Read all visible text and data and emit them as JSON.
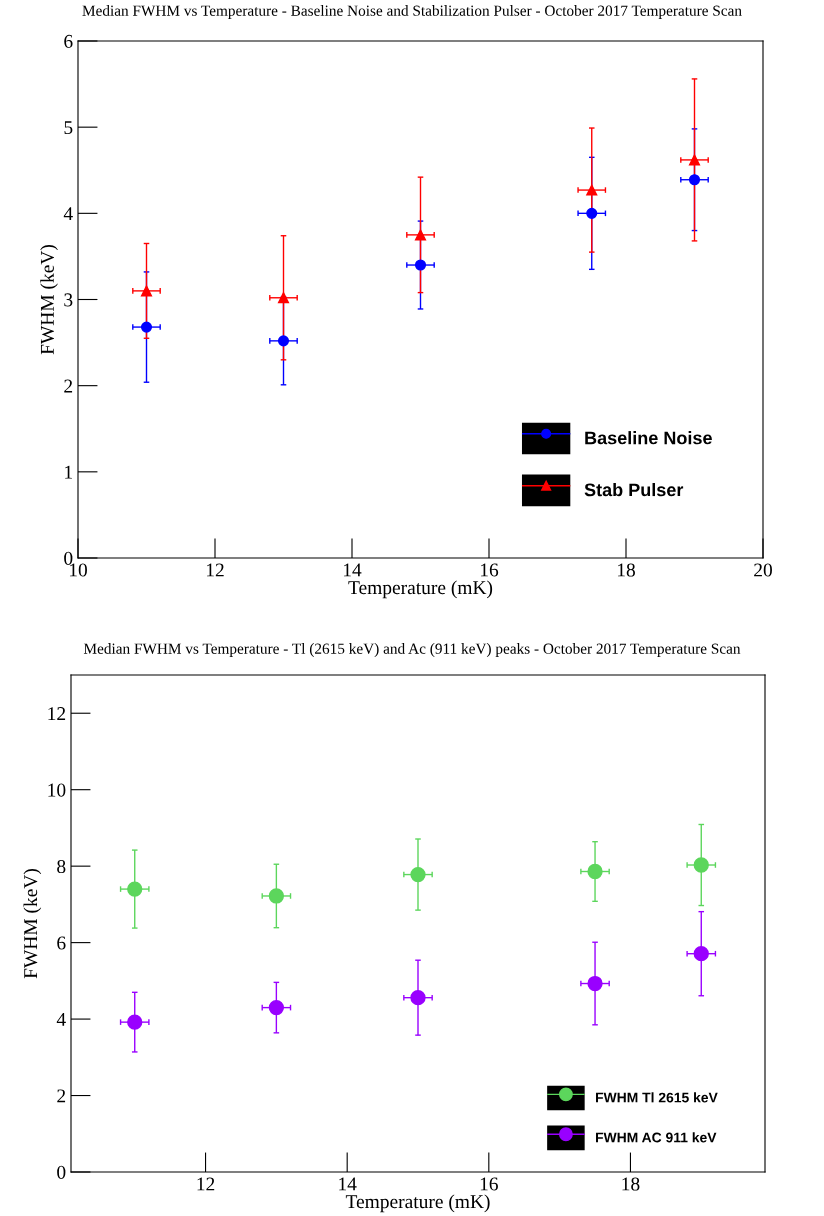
{
  "chart_data": [
    {
      "type": "scatter",
      "title": "Median FWHM vs Temperature - Baseline Noise and Stabilization Pulser - October 2017 Temperature Scan",
      "xlabel": "Temperature (mK)",
      "ylabel": "FWHM (keV)",
      "xlim": [
        10,
        20
      ],
      "xticks": [
        10,
        12,
        14,
        16,
        18,
        20
      ],
      "ylim": [
        0,
        6
      ],
      "yticks": [
        0,
        1,
        2,
        3,
        4,
        5,
        6
      ],
      "legend": "bottom right",
      "grid": false,
      "series": [
        {
          "name": "Baseline Noise",
          "color": "#0000ff",
          "marker": "circle",
          "x": [
            11,
            13,
            15,
            17.5,
            19
          ],
          "values": [
            2.68,
            2.52,
            3.4,
            4.0,
            4.39
          ],
          "errors": [
            0.64,
            0.51,
            0.51,
            0.65,
            0.59
          ],
          "xerrors": [
            0.2,
            0.2,
            0.2,
            0.2,
            0.2
          ]
        },
        {
          "name": "Stab Pulser",
          "color": "#ff0000",
          "marker": "triangle",
          "x": [
            11,
            13,
            15,
            17.5,
            19
          ],
          "values": [
            3.1,
            3.02,
            3.75,
            4.27,
            4.62
          ],
          "errors": [
            0.55,
            0.72,
            0.67,
            0.72,
            0.94
          ],
          "xerrors": [
            0.2,
            0.2,
            0.2,
            0.2,
            0.2
          ]
        }
      ]
    },
    {
      "type": "scatter",
      "title": "Median FWHM vs Temperature - Tl (2615 keV) and Ac (911 keV) peaks - October 2017 Temperature Scan",
      "xlabel": "Temperature (mK)",
      "ylabel": "FWHM (keV)",
      "xlim": [
        10.1,
        19.9
      ],
      "xticks": [
        12,
        14,
        16,
        18
      ],
      "ylim": [
        0,
        13
      ],
      "yticks": [
        0,
        2,
        4,
        6,
        8,
        10,
        12
      ],
      "legend": "bottom right",
      "grid": false,
      "series": [
        {
          "name": "FWHM Tl 2615 keV",
          "color": "#5cd65c",
          "marker": "circle",
          "x": [
            11,
            13,
            15,
            17.5,
            19
          ],
          "values": [
            7.4,
            7.22,
            7.78,
            7.86,
            8.03
          ],
          "errors": [
            1.02,
            0.83,
            0.93,
            0.78,
            1.06
          ],
          "xerrors": [
            0.2,
            0.2,
            0.2,
            0.2,
            0.2
          ]
        },
        {
          "name": "FWHM AC 911 keV",
          "color": "#9900ff",
          "marker": "circle",
          "x": [
            11,
            13,
            15,
            17.5,
            19
          ],
          "values": [
            3.92,
            4.3,
            4.56,
            4.93,
            5.71
          ],
          "errors": [
            0.78,
            0.66,
            0.98,
            1.08,
            1.1
          ],
          "xerrors": [
            0.2,
            0.2,
            0.2,
            0.2,
            0.2
          ]
        }
      ]
    }
  ]
}
